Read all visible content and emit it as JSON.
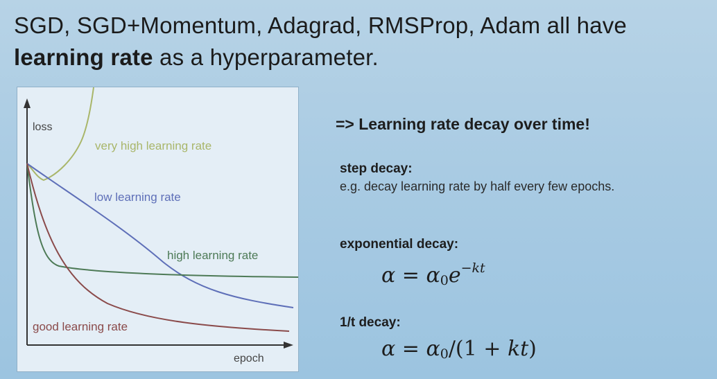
{
  "title": {
    "line1": "SGD, SGD+Momentum, Adagrad, RMSProp, Adam all have",
    "bold": "learning rate",
    "rest": " as a hyperparameter."
  },
  "chart": {
    "ylabel": "loss",
    "xlabel": "epoch",
    "labels": {
      "very_high": "very high learning rate",
      "low": "low learning rate",
      "high": "high learning rate",
      "good": "good learning rate"
    },
    "colors": {
      "very_high": "#a9b66a",
      "low": "#5e6fb8",
      "high": "#4d7a56",
      "good": "#8a4a4a"
    }
  },
  "right": {
    "headline": "=> Learning rate decay over time!",
    "step": {
      "title": "step decay:",
      "desc": "e.g. decay learning rate by half every few epochs."
    },
    "exponential": {
      "title": "exponential decay:"
    },
    "inverse": {
      "title": "1/t decay:"
    }
  }
}
